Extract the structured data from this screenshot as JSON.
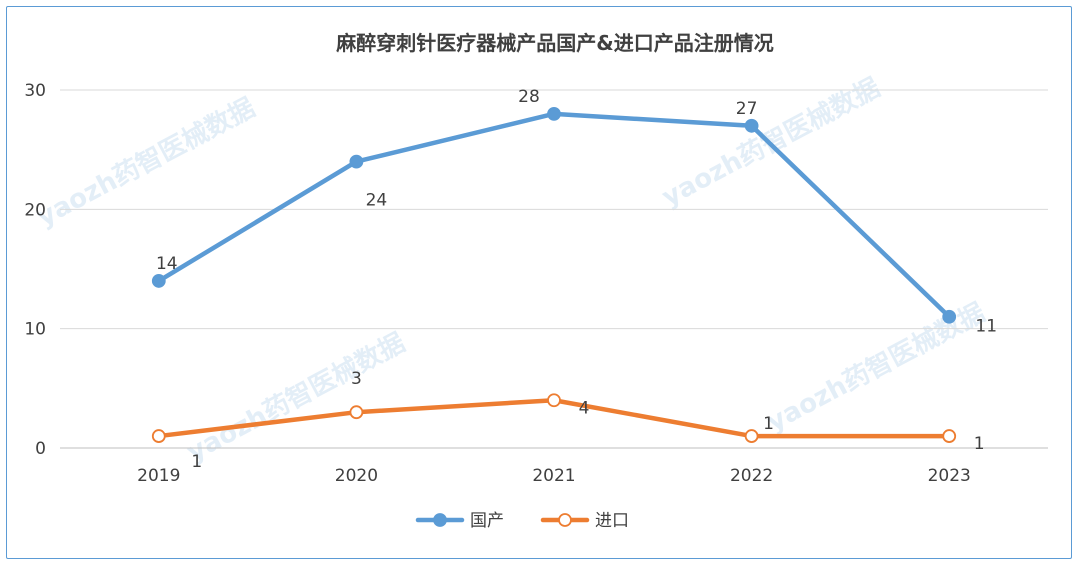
{
  "chart_data": {
    "type": "line",
    "title": "麻醉穿刺针医疗器械产品国产&进口产品注册情况",
    "categories": [
      "2019",
      "2020",
      "2021",
      "2022",
      "2023"
    ],
    "ylim": [
      0,
      30
    ],
    "yticks": [
      0,
      10,
      20,
      30
    ],
    "grid": true,
    "legend_position": "bottom",
    "series": [
      {
        "name": "国产",
        "values": [
          14,
          24,
          28,
          27,
          11
        ],
        "color": "#5b9bd5",
        "marker": "filled-circle"
      },
      {
        "name": "进口",
        "values": [
          1,
          3,
          4,
          1,
          1
        ],
        "color": "#ed7d31",
        "marker": "hollow-circle"
      }
    ]
  },
  "watermark": "yaozh药智医械数据",
  "colors": {
    "frame": "#5b9bd5",
    "grid": "#d9d9d9",
    "axis": "#bfbfbf",
    "text": "#404040"
  }
}
